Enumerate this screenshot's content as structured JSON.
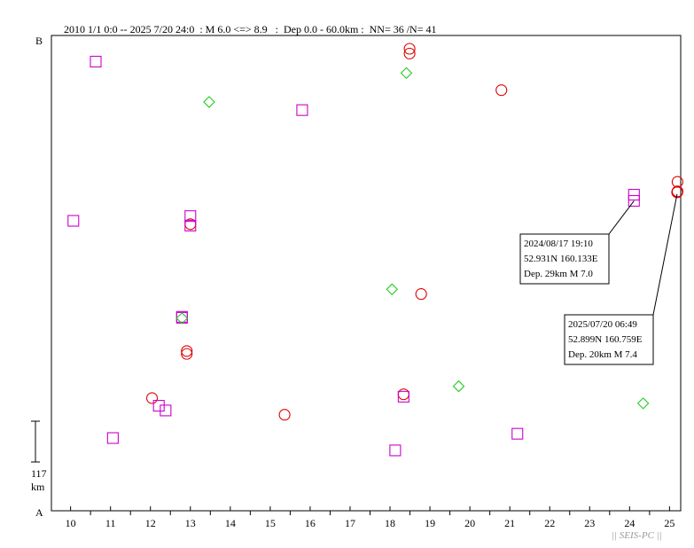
{
  "header": "2010 1/1 0:0 -- 2025 7/20 24:0  : M 6.0 <=> 8.9   :  Dep 0.0 - 60.0km :  NN= 36 /N= 41",
  "labels": {
    "top": "B",
    "bottom": "A"
  },
  "scale": {
    "value": "117",
    "unit": "km"
  },
  "watermark": "|| SEIS-PC ||",
  "colors": {
    "circle": "#dd0000",
    "square": "#cc00cc",
    "diamond": "#22cc22",
    "frame": "#000000"
  },
  "chart_data": {
    "type": "scatter",
    "x_ticks": [
      "10",
      "11",
      "12",
      "13",
      "14",
      "15",
      "16",
      "17",
      "18",
      "19",
      "20",
      "21",
      "22",
      "23",
      "24",
      "25"
    ],
    "xlim": [
      9.52,
      25.28
    ],
    "ylim": [
      0,
      1
    ],
    "series": [
      {
        "marker": "circle",
        "points": [
          [
            18.49,
            0.972
          ],
          [
            18.49,
            0.962
          ],
          [
            20.79,
            0.885
          ],
          [
            25.2,
            0.692
          ],
          [
            25.2,
            0.672
          ],
          [
            25.2,
            0.671
          ],
          [
            25.19,
            0.67
          ],
          [
            13.0,
            0.603
          ],
          [
            18.78,
            0.456
          ],
          [
            12.91,
            0.336
          ],
          [
            12.91,
            0.33
          ],
          [
            12.04,
            0.237
          ],
          [
            15.36,
            0.202
          ],
          [
            18.34,
            0.245
          ]
        ]
      },
      {
        "marker": "square",
        "points": [
          [
            10.63,
            0.945
          ],
          [
            15.8,
            0.843
          ],
          [
            24.11,
            0.665
          ],
          [
            24.11,
            0.652
          ],
          [
            10.07,
            0.61
          ],
          [
            13.0,
            0.62
          ],
          [
            13.0,
            0.6
          ],
          [
            12.79,
            0.408
          ],
          [
            12.79,
            0.406
          ],
          [
            12.21,
            0.221
          ],
          [
            12.38,
            0.211
          ],
          [
            11.06,
            0.153
          ],
          [
            18.34,
            0.24
          ],
          [
            18.13,
            0.127
          ],
          [
            21.19,
            0.162
          ]
        ]
      },
      {
        "marker": "diamond",
        "points": [
          [
            18.41,
            0.921
          ],
          [
            13.47,
            0.86
          ],
          [
            18.05,
            0.466
          ],
          [
            12.79,
            0.405
          ],
          [
            19.72,
            0.262
          ],
          [
            24.34,
            0.226
          ]
        ]
      }
    ],
    "annotations": [
      {
        "lines": [
          "2024/08/17 19:10",
          "52.931N  160.133E",
          "Dep. 29km    M 7.0"
        ],
        "x": 24.11,
        "y": 0.652
      },
      {
        "lines": [
          "2025/07/20 06:49",
          "52.899N  160.759E",
          "Dep. 20km    M 7.4"
        ],
        "x": 25.19,
        "y": 0.67
      }
    ]
  }
}
